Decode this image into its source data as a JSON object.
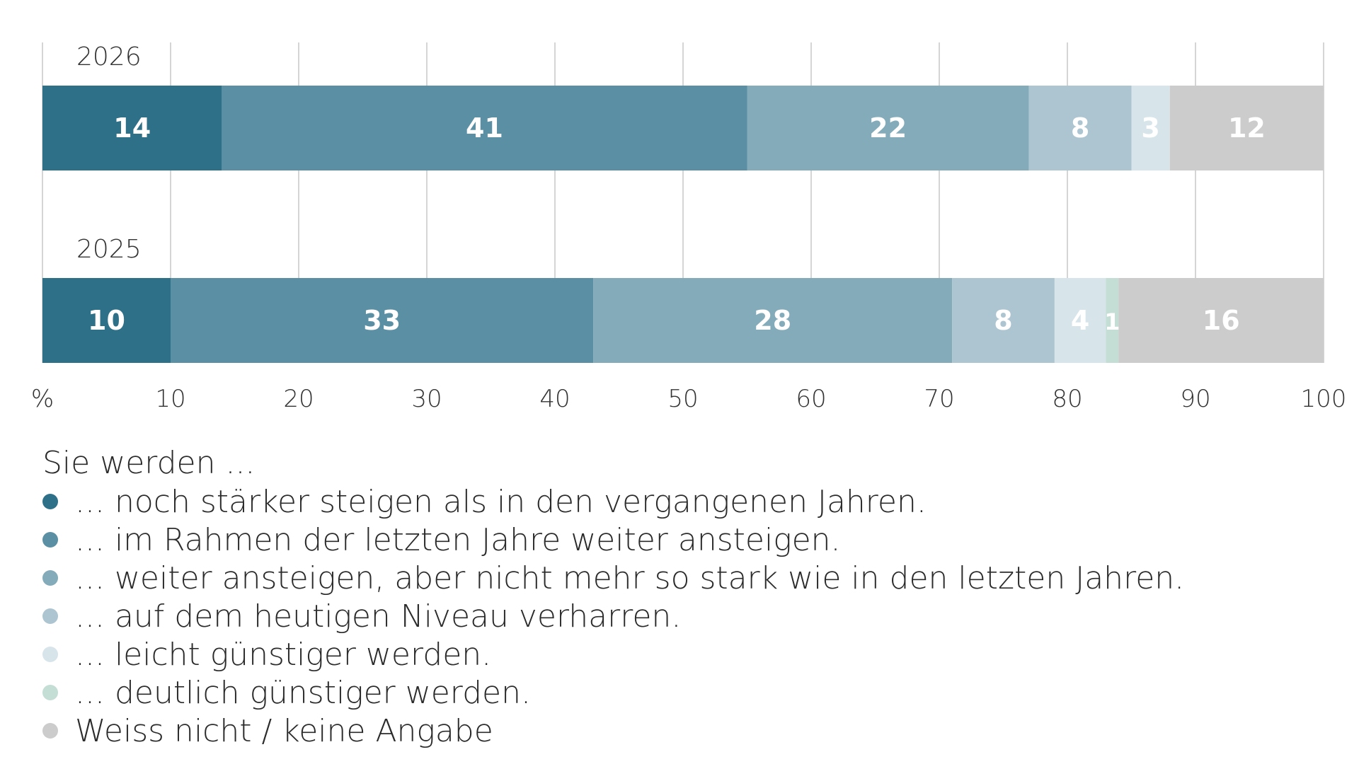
{
  "chart_data": {
    "type": "bar",
    "orientation": "horizontal",
    "stacked": true,
    "axis_unit": "%",
    "xlim": [
      0,
      100
    ],
    "ticks": [
      10,
      20,
      30,
      40,
      50,
      60,
      70,
      80,
      90,
      100
    ],
    "grid": true,
    "categories": [
      "2026",
      "2025"
    ],
    "series": [
      {
        "name": "... noch stärker steigen als in den vergangenen Jahren.",
        "color": "#2e7088",
        "values": [
          14,
          10
        ]
      },
      {
        "name": "... im Rahmen der letzten Jahre weiter ansteigen.",
        "color": "#5b8fa3",
        "values": [
          41,
          33
        ]
      },
      {
        "name": "... weiter ansteigen, aber nicht mehr so stark wie in den letzten Jahren.",
        "color": "#84abb9",
        "values": [
          22,
          28
        ]
      },
      {
        "name": "... auf dem heutigen Niveau verharren.",
        "color": "#adc5d0",
        "values": [
          8,
          8
        ]
      },
      {
        "name": "... leicht günstiger werden.",
        "color": "#d7e4ea",
        "values": [
          3,
          4
        ]
      },
      {
        "name": "... deutlich günstiger werden.",
        "color": "#c4ddd5",
        "values": [
          0,
          1
        ]
      },
      {
        "name": "Weiss nicht / keine Angabe",
        "color": "#cccccc",
        "values": [
          12,
          16
        ]
      }
    ]
  },
  "legend": {
    "title": "Sie werden ..."
  }
}
